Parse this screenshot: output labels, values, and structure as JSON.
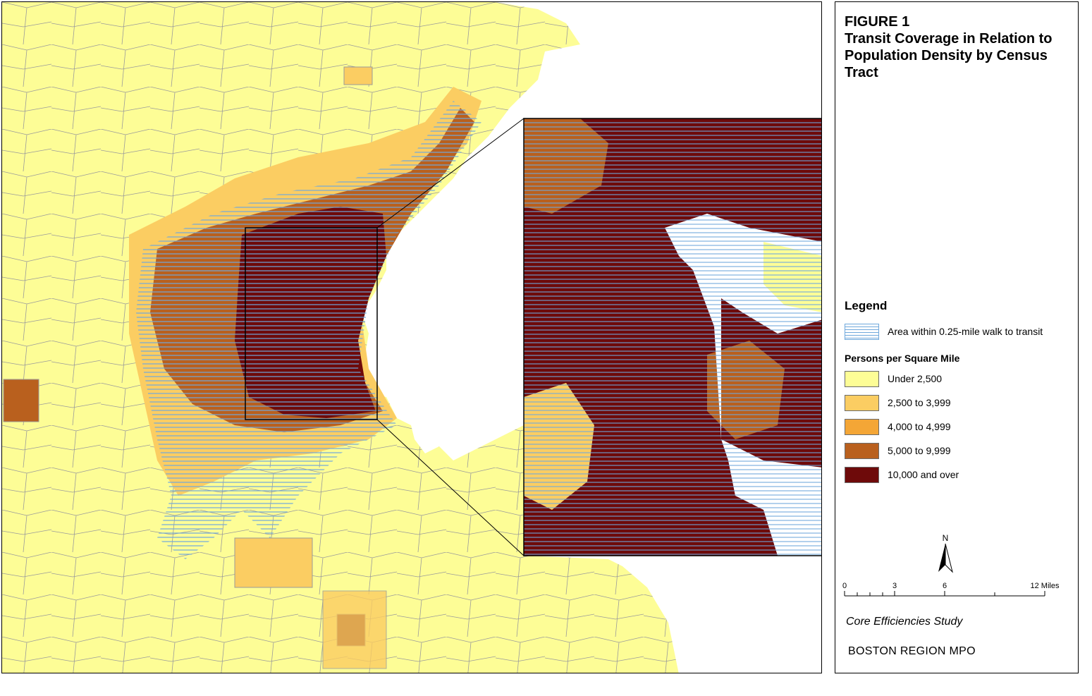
{
  "figure": {
    "label": "FIGURE 1",
    "title_lines": [
      "Transit Coverage in Relation to",
      "Population Density by Census",
      "Tract"
    ]
  },
  "legend": {
    "heading": "Legend",
    "transit_label": "Area within 0.25-mile walk to transit",
    "density_heading": "Persons per Square Mile",
    "classes": [
      {
        "label": "Under 2,500",
        "color": "#fdfd96"
      },
      {
        "label": "2,500 to 3,999",
        "color": "#fbcd62"
      },
      {
        "label": "4,000 to 4,999",
        "color": "#f4a636"
      },
      {
        "label": "5,000 to 9,999",
        "color": "#b9601e"
      },
      {
        "label": "10,000 and over",
        "color": "#6e0a0a"
      }
    ]
  },
  "north_arrow": {
    "label": "N"
  },
  "scale": {
    "ticks": [
      "0",
      "3",
      "6",
      "12 Miles"
    ]
  },
  "footer": {
    "study": "Core Efficiencies Study",
    "organization": "BOSTON REGION MPO"
  },
  "colors": {
    "transit_hatch": "#6fa8dc",
    "water": "#ffffff",
    "tract_border": "#9a9a9a"
  }
}
